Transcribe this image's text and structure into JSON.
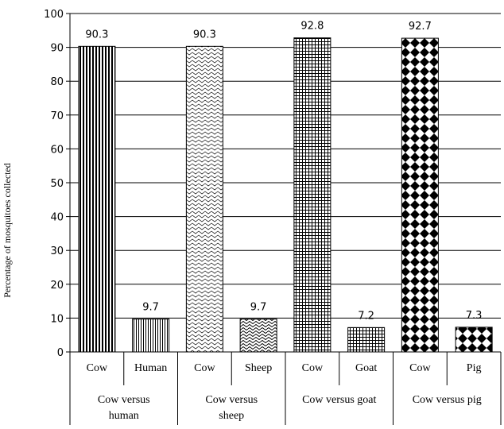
{
  "chart_data": {
    "type": "bar",
    "ylabel": "Percentage of mosquitoes collected",
    "ylim": [
      0,
      100
    ],
    "yticks": [
      0,
      10,
      20,
      30,
      40,
      50,
      60,
      70,
      80,
      90,
      100
    ],
    "grid": true,
    "groups": [
      {
        "label": "Cow versus human",
        "label_lines": [
          "Cow versus",
          "human"
        ],
        "bars": [
          {
            "category": "Cow",
            "value": 90.3,
            "value_label": "90.3",
            "pattern": "vstripe-wide"
          },
          {
            "category": "Human",
            "value": 9.7,
            "value_label": "9.7",
            "pattern": "vstripe-fine"
          }
        ]
      },
      {
        "label": "Cow versus sheep",
        "label_lines": [
          "Cow versus",
          "sheep"
        ],
        "bars": [
          {
            "category": "Cow",
            "value": 90.3,
            "value_label": "90.3",
            "pattern": "wave-light"
          },
          {
            "category": "Sheep",
            "value": 9.7,
            "value_label": "9.7",
            "pattern": "wave"
          }
        ]
      },
      {
        "label": "Cow versus goat",
        "label_lines": [
          "Cow versus goat"
        ],
        "bars": [
          {
            "category": "Cow",
            "value": 92.8,
            "value_label": "92.8",
            "pattern": "grid"
          },
          {
            "category": "Goat",
            "value": 7.2,
            "value_label": "7.2",
            "pattern": "grid"
          }
        ]
      },
      {
        "label": "Cow versus pig",
        "label_lines": [
          "Cow versus pig"
        ],
        "bars": [
          {
            "category": "Cow",
            "value": 92.7,
            "value_label": "92.7",
            "pattern": "diamond"
          },
          {
            "category": "Pig",
            "value": 7.3,
            "value_label": "7.3",
            "pattern": "diamond"
          }
        ]
      }
    ],
    "colors": {
      "bar_fill": "#ffffff",
      "bar_pattern": "#000000",
      "grid": "#000000",
      "axis": "#000000"
    }
  }
}
